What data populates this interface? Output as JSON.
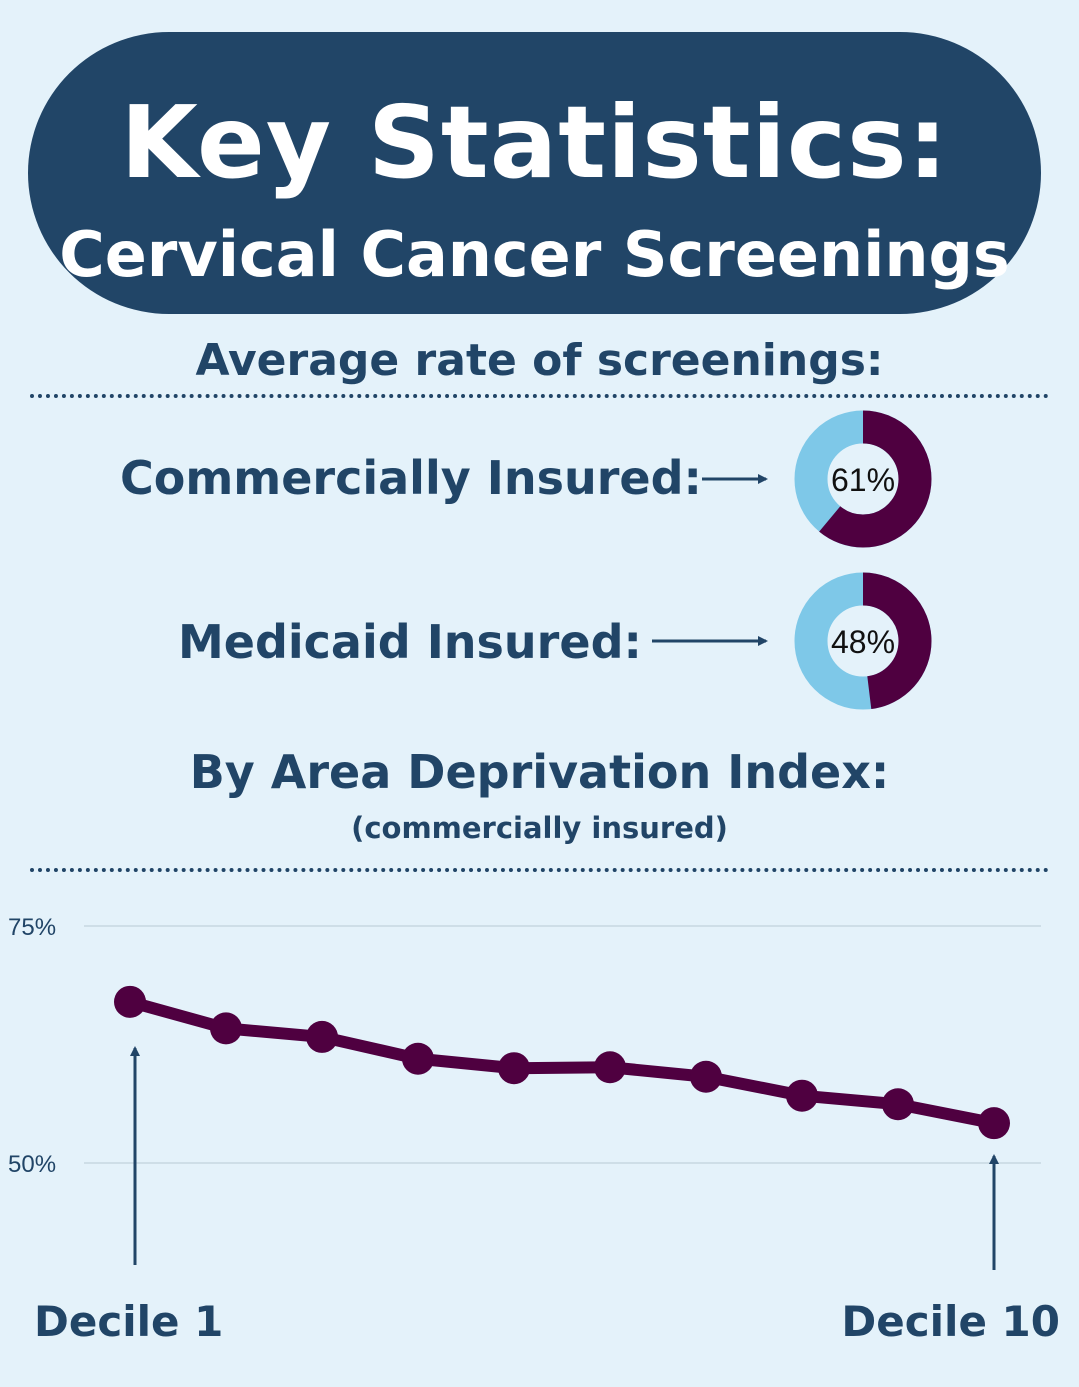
{
  "header": {
    "title": "Key Statistics:",
    "subtitle": "Cervical Cancer Screenings"
  },
  "average_section": {
    "heading": "Average rate of screenings:",
    "items": [
      {
        "label": "Commercially Insured:",
        "value": 61,
        "display": "61%"
      },
      {
        "label": "Medicaid Insured:",
        "value": 48,
        "display": "48%"
      }
    ]
  },
  "adi_section": {
    "heading": "By Area Deprivation Index:",
    "subheading": "(commercially insured)"
  },
  "colors": {
    "background": "#e4f2fa",
    "navy": "#214567",
    "donut_fill": "#4f0040",
    "donut_track": "#7ec8e8",
    "line": "#4f0040",
    "gridline": "#b9c9d4"
  },
  "chart_data": {
    "type": "line",
    "x": [
      1,
      2,
      3,
      4,
      5,
      6,
      7,
      8,
      9,
      10
    ],
    "series": [
      {
        "values": [
          67,
          64.2,
          63.3,
          61,
          60,
          60.1,
          59.1,
          57.1,
          56.2,
          54.2
        ]
      }
    ],
    "ytick_labels": [
      "75%",
      "50%"
    ],
    "yticks": [
      75,
      50
    ],
    "ylim": [
      50,
      75
    ],
    "grid": true,
    "annotations": {
      "start": "Decile 1",
      "end": "Decile 10"
    }
  }
}
